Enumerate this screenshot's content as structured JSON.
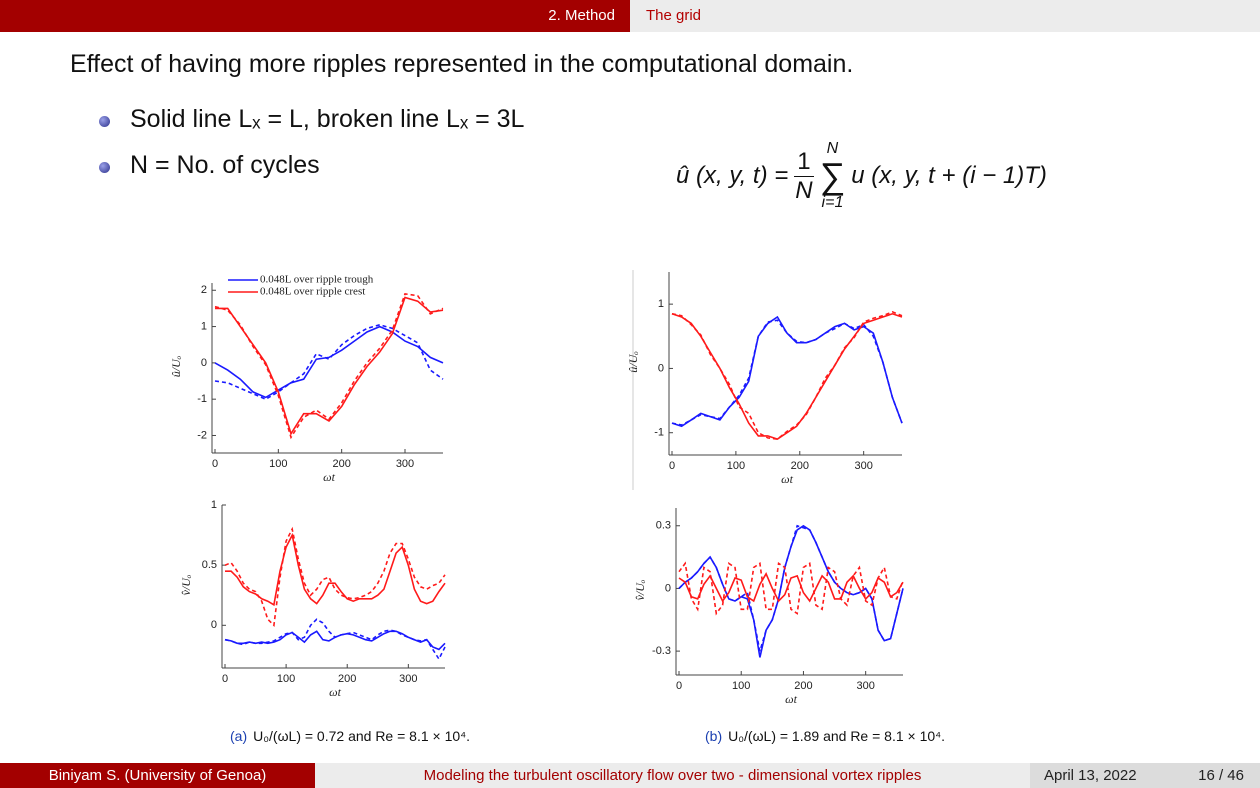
{
  "header": {
    "section": "2. Method",
    "subsection": "The grid"
  },
  "title": "Effect of having more ripples represented in the computational domain.",
  "bullets": [
    "Solid line Lₓ = L, broken line Lₓ = 3L",
    "N = No. of cycles"
  ],
  "formula": {
    "lhs": "û (x, y, t) =",
    "numerator": "1",
    "denominator": "N",
    "sum_upper": "N",
    "sum_symbol": "∑",
    "sum_lower": "i=1",
    "rhs": "u (x, y, t + (i − 1)T)"
  },
  "captions": [
    {
      "label": "(a)",
      "text": "U₀/(ωL) = 0.72 and Re = 8.1 × 10⁴."
    },
    {
      "label": "(b)",
      "text": "U₀/(ωL) = 1.89 and Re = 8.1 × 10⁴."
    }
  ],
  "footer": {
    "author": "Biniyam S.  (University of Genoa)",
    "talk": "Modeling the turbulent oscillatory flow over two - dimensional vortex ripples",
    "date": "April 13, 2022",
    "page": "16 / 46"
  },
  "chart_data": [
    {
      "type": "line",
      "xlabel": "ωt",
      "ylabel": "û/Uₒ",
      "xlim": [
        0,
        360
      ],
      "ylim": [
        -2.4,
        2.2
      ],
      "xticks": [
        0,
        100,
        200,
        300
      ],
      "yticks": [
        -2,
        -1,
        0,
        1,
        2
      ],
      "legend": "upper left",
      "x": [
        0,
        20,
        40,
        60,
        80,
        100,
        120,
        140,
        160,
        180,
        200,
        220,
        240,
        260,
        280,
        300,
        320,
        340,
        360
      ],
      "series": [
        {
          "name": "0.048L over ripple trough",
          "color": "#1a1aff",
          "dash": false,
          "values": [
            0.0,
            -0.2,
            -0.45,
            -0.8,
            -0.95,
            -0.75,
            -0.55,
            -0.45,
            0.1,
            0.15,
            0.35,
            0.6,
            0.85,
            1.0,
            0.85,
            0.6,
            0.45,
            0.15,
            0.0
          ]
        },
        {
          "color": "#1a1aff",
          "dash": true,
          "values": [
            -0.5,
            -0.55,
            -0.7,
            -0.85,
            -1.0,
            -0.8,
            -0.55,
            -0.3,
            0.25,
            0.1,
            0.5,
            0.75,
            0.95,
            1.05,
            0.95,
            0.75,
            0.55,
            -0.2,
            -0.45
          ]
        },
        {
          "name": "0.048L over ripple crest",
          "color": "#ff1a1a",
          "dash": false,
          "values": [
            1.5,
            1.5,
            1.0,
            0.5,
            0.0,
            -0.8,
            -1.95,
            -1.4,
            -1.4,
            -1.6,
            -1.2,
            -0.6,
            -0.1,
            0.3,
            0.8,
            1.8,
            1.7,
            1.4,
            1.45
          ]
        },
        {
          "color": "#ff1a1a",
          "dash": true,
          "values": [
            1.55,
            1.45,
            1.05,
            0.45,
            -0.05,
            -0.9,
            -2.05,
            -1.5,
            -1.3,
            -1.55,
            -1.1,
            -0.5,
            0.0,
            0.4,
            0.9,
            1.9,
            1.85,
            1.35,
            1.5
          ]
        }
      ]
    },
    {
      "type": "line",
      "xlabel": "ωt",
      "ylabel": "û/Uₒ",
      "xlim": [
        0,
        360
      ],
      "ylim": [
        -1.3,
        1.5
      ],
      "xticks": [
        0,
        100,
        200,
        300
      ],
      "yticks": [
        -1,
        0,
        1
      ],
      "x": [
        0,
        15,
        30,
        45,
        60,
        75,
        90,
        105,
        120,
        135,
        150,
        165,
        180,
        195,
        210,
        225,
        240,
        255,
        270,
        285,
        300,
        315,
        330,
        345,
        360
      ],
      "series": [
        {
          "color": "#1a1aff",
          "dash": false,
          "values": [
            -0.85,
            -0.9,
            -0.8,
            -0.7,
            -0.75,
            -0.8,
            -0.6,
            -0.45,
            -0.2,
            0.5,
            0.7,
            0.8,
            0.55,
            0.4,
            0.4,
            0.45,
            0.55,
            0.65,
            0.7,
            0.6,
            0.65,
            0.55,
            0.1,
            -0.45,
            -0.85
          ]
        },
        {
          "color": "#1a1aff",
          "dash": true,
          "values": [
            -0.85,
            -0.88,
            -0.8,
            -0.72,
            -0.75,
            -0.78,
            -0.6,
            -0.42,
            -0.15,
            0.5,
            0.72,
            0.75,
            0.55,
            0.42,
            0.4,
            0.45,
            0.55,
            0.62,
            0.7,
            0.62,
            0.68,
            0.5,
            0.1,
            -0.45,
            -0.85
          ]
        },
        {
          "color": "#ff1a1a",
          "dash": false,
          "values": [
            0.85,
            0.8,
            0.7,
            0.5,
            0.25,
            0.0,
            -0.3,
            -0.55,
            -0.85,
            -1.05,
            -1.05,
            -1.1,
            -1.0,
            -0.9,
            -0.7,
            -0.45,
            -0.2,
            0.05,
            0.3,
            0.5,
            0.7,
            0.75,
            0.8,
            0.85,
            0.8
          ]
        },
        {
          "color": "#ff1a1a",
          "dash": true,
          "values": [
            0.85,
            0.82,
            0.68,
            0.52,
            0.22,
            0.0,
            -0.25,
            -0.6,
            -0.7,
            -1.0,
            -1.08,
            -1.1,
            -0.98,
            -0.88,
            -0.72,
            -0.45,
            -0.15,
            0.05,
            0.32,
            0.48,
            0.72,
            0.78,
            0.82,
            0.88,
            0.82
          ]
        }
      ]
    },
    {
      "type": "line",
      "xlabel": "ωt",
      "ylabel": "v̂/Uₒ",
      "xlim": [
        0,
        360
      ],
      "ylim": [
        -0.33,
        1
      ],
      "xticks": [
        0,
        100,
        200,
        300
      ],
      "yticks": [
        0,
        0.5,
        1
      ],
      "x": [
        0,
        10,
        20,
        30,
        40,
        50,
        60,
        70,
        80,
        90,
        100,
        110,
        120,
        130,
        140,
        150,
        160,
        170,
        180,
        190,
        200,
        210,
        220,
        230,
        240,
        250,
        260,
        270,
        280,
        290,
        300,
        310,
        320,
        330,
        340,
        350,
        360
      ],
      "series": [
        {
          "color": "#1a1aff",
          "dash": false,
          "values": [
            -0.12,
            -0.13,
            -0.15,
            -0.15,
            -0.14,
            -0.15,
            -0.14,
            -0.15,
            -0.14,
            -0.12,
            -0.08,
            -0.06,
            -0.1,
            -0.14,
            -0.08,
            -0.05,
            -0.12,
            -0.13,
            -0.1,
            -0.08,
            -0.07,
            -0.08,
            -0.1,
            -0.12,
            -0.13,
            -0.1,
            -0.07,
            -0.05,
            -0.05,
            -0.07,
            -0.1,
            -0.12,
            -0.14,
            -0.12,
            -0.18,
            -0.2,
            -0.15
          ]
        },
        {
          "color": "#1a1aff",
          "dash": true,
          "values": [
            -0.12,
            -0.13,
            -0.15,
            -0.16,
            -0.14,
            -0.15,
            -0.15,
            -0.14,
            -0.13,
            -0.1,
            -0.07,
            -0.06,
            -0.12,
            -0.1,
            0.0,
            0.05,
            0.02,
            -0.05,
            -0.1,
            -0.08,
            -0.07,
            -0.06,
            -0.08,
            -0.1,
            -0.12,
            -0.08,
            -0.05,
            -0.04,
            -0.05,
            -0.08,
            -0.1,
            -0.12,
            -0.13,
            -0.12,
            -0.2,
            -0.28,
            -0.18
          ]
        },
        {
          "color": "#ff1a1a",
          "dash": false,
          "values": [
            0.45,
            0.45,
            0.4,
            0.32,
            0.28,
            0.26,
            0.22,
            0.2,
            0.17,
            0.45,
            0.65,
            0.75,
            0.5,
            0.3,
            0.22,
            0.18,
            0.25,
            0.35,
            0.35,
            0.28,
            0.22,
            0.2,
            0.22,
            0.22,
            0.22,
            0.25,
            0.3,
            0.45,
            0.6,
            0.65,
            0.5,
            0.3,
            0.2,
            0.18,
            0.2,
            0.28,
            0.35
          ]
        },
        {
          "color": "#ff1a1a",
          "dash": true,
          "values": [
            0.5,
            0.52,
            0.45,
            0.35,
            0.3,
            0.28,
            0.2,
            0.05,
            0.0,
            0.4,
            0.7,
            0.8,
            0.55,
            0.35,
            0.25,
            0.3,
            0.38,
            0.4,
            0.3,
            0.25,
            0.23,
            0.22,
            0.23,
            0.25,
            0.28,
            0.35,
            0.45,
            0.6,
            0.68,
            0.68,
            0.55,
            0.4,
            0.32,
            0.3,
            0.33,
            0.35,
            0.42
          ]
        }
      ]
    },
    {
      "type": "line",
      "xlabel": "ωt",
      "ylabel": "v̂/Uₒ",
      "xlim": [
        0,
        360
      ],
      "ylim": [
        -0.4,
        0.385
      ],
      "xticks": [
        0,
        100,
        200,
        300
      ],
      "yticks": [
        -0.3,
        0,
        0.3
      ],
      "x": [
        0,
        10,
        20,
        30,
        40,
        50,
        60,
        70,
        80,
        90,
        100,
        110,
        120,
        130,
        140,
        150,
        160,
        170,
        180,
        190,
        200,
        210,
        220,
        230,
        240,
        250,
        260,
        270,
        280,
        290,
        300,
        310,
        320,
        330,
        340,
        350,
        360
      ],
      "series": [
        {
          "color": "#1a1aff",
          "dash": false,
          "values": [
            0.0,
            0.03,
            0.05,
            0.08,
            0.12,
            0.15,
            0.1,
            0.02,
            -0.05,
            -0.06,
            -0.04,
            -0.05,
            -0.15,
            -0.33,
            -0.2,
            -0.15,
            -0.05,
            0.1,
            0.2,
            0.28,
            0.3,
            0.28,
            0.22,
            0.15,
            0.08,
            0.03,
            0.0,
            -0.02,
            -0.03,
            -0.02,
            0.0,
            -0.05,
            -0.2,
            -0.25,
            -0.24,
            -0.12,
            0.0
          ]
        },
        {
          "color": "#1a1aff",
          "dash": true,
          "values": [
            0.0,
            0.03,
            0.05,
            0.08,
            0.12,
            0.15,
            0.1,
            0.02,
            -0.05,
            -0.06,
            -0.04,
            -0.02,
            -0.15,
            -0.3,
            -0.2,
            -0.15,
            -0.05,
            0.1,
            0.2,
            0.3,
            0.29,
            0.28,
            0.22,
            0.15,
            0.08,
            0.03,
            0.0,
            -0.02,
            -0.03,
            -0.02,
            0.0,
            -0.05,
            -0.2,
            -0.25,
            -0.24,
            -0.12,
            0.0
          ]
        },
        {
          "color": "#ff1a1a",
          "dash": false,
          "values": [
            0.05,
            0.03,
            -0.04,
            -0.05,
            0.02,
            0.06,
            0.0,
            -0.06,
            -0.02,
            0.05,
            0.04,
            -0.04,
            -0.06,
            0.02,
            0.07,
            0.0,
            -0.06,
            -0.03,
            0.05,
            0.06,
            -0.02,
            -0.06,
            0.0,
            0.06,
            0.03,
            -0.05,
            -0.05,
            0.03,
            0.06,
            0.0,
            -0.05,
            -0.02,
            0.05,
            0.03,
            -0.04,
            -0.02,
            0.03
          ]
        },
        {
          "color": "#ff1a1a",
          "dash": true,
          "values": [
            0.08,
            0.12,
            -0.05,
            -0.1,
            0.1,
            0.08,
            -0.12,
            -0.08,
            0.12,
            0.1,
            -0.1,
            -0.1,
            0.1,
            0.12,
            -0.1,
            -0.1,
            0.12,
            0.1,
            -0.1,
            -0.12,
            0.1,
            0.12,
            -0.08,
            -0.1,
            0.1,
            0.08,
            -0.05,
            -0.08,
            0.06,
            0.1,
            -0.06,
            -0.08,
            0.05,
            0.1,
            -0.04,
            -0.05,
            0.04
          ]
        }
      ]
    }
  ]
}
